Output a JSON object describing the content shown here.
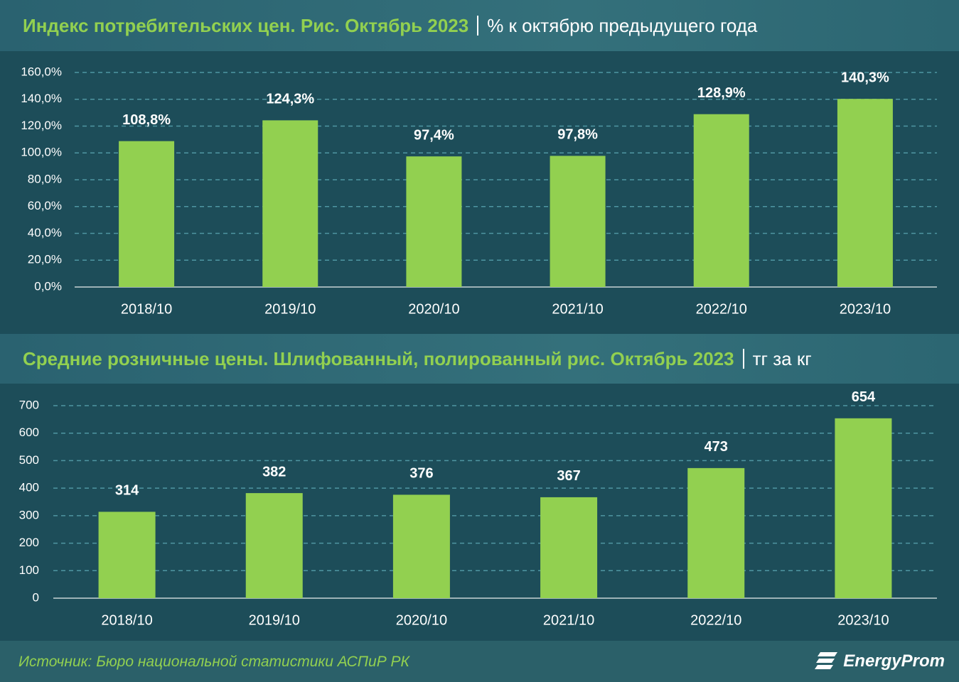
{
  "chart_data": [
    {
      "type": "bar",
      "title": "Индекс потребительских цен. Рис. Октябрь 2023",
      "subtitle": "% к октябрю предыдущего года",
      "categories": [
        "2018/10",
        "2019/10",
        "2020/10",
        "2021/10",
        "2022/10",
        "2023/10"
      ],
      "values": [
        108.8,
        124.3,
        97.4,
        97.8,
        128.9,
        140.3
      ],
      "value_labels": [
        "108,8%",
        "124,3%",
        "97,4%",
        "97,8%",
        "128,9%",
        "140,3%"
      ],
      "color": "#92d050",
      "ylim": [
        0,
        160
      ],
      "yticks": [
        {
          "value": 0,
          "label": "0,0%"
        },
        {
          "value": 20,
          "label": "20,0%"
        },
        {
          "value": 40,
          "label": "40,0%"
        },
        {
          "value": 60,
          "label": "60,0%"
        },
        {
          "value": 80,
          "label": "80,0%"
        },
        {
          "value": 100,
          "label": "100,0%"
        },
        {
          "value": 120,
          "label": "120,0%"
        },
        {
          "value": 140,
          "label": "140,0%"
        },
        {
          "value": 160,
          "label": "160,0%"
        }
      ],
      "grid": true
    },
    {
      "type": "bar",
      "title": "Средние розничные цены. Шлифованный, полированный рис. Октябрь 2023",
      "subtitle": "тг за кг",
      "categories": [
        "2018/10",
        "2019/10",
        "2020/10",
        "2021/10",
        "2022/10",
        "2023/10"
      ],
      "values": [
        314,
        382,
        376,
        367,
        473,
        654
      ],
      "color": "#92d050",
      "ylim": [
        0,
        700
      ],
      "yticks": [
        0,
        100,
        200,
        300,
        400,
        500,
        600,
        700
      ],
      "grid": true
    }
  ],
  "source": "Источник: Бюро национальной статистики АСПиР РК",
  "logo": "EnergyProm"
}
